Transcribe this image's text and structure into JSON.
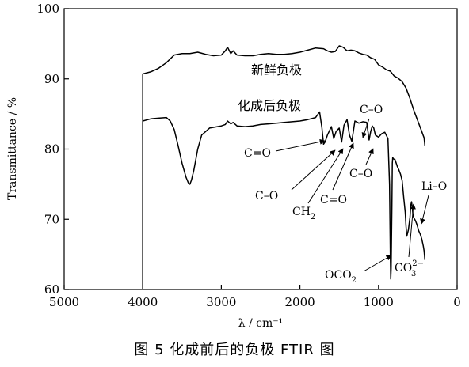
{
  "caption": "图 5 化成前后的负极 FTIR 图",
  "chart_data": {
    "type": "line",
    "title": "",
    "xlabel": "λ / cm⁻¹",
    "ylabel": "Transmittance / %",
    "xlim": [
      5000,
      0
    ],
    "ylim": [
      60,
      100
    ],
    "x_ticks": [
      5000,
      4000,
      3000,
      2000,
      1000,
      0
    ],
    "y_ticks": [
      60,
      70,
      80,
      90,
      100
    ],
    "grid": false,
    "legend": "none",
    "series": [
      {
        "name": "新鲜负极",
        "x": [
          4000,
          4000,
          3900,
          3800,
          3700,
          3600,
          3500,
          3400,
          3300,
          3200,
          3100,
          3000,
          2950,
          2920,
          2880,
          2850,
          2800,
          2700,
          2600,
          2500,
          2400,
          2300,
          2200,
          2100,
          2000,
          1900,
          1800,
          1700,
          1650,
          1600,
          1550,
          1500,
          1450,
          1400,
          1350,
          1300,
          1250,
          1200,
          1150,
          1100,
          1050,
          1000,
          950,
          900,
          850,
          800,
          750,
          700,
          650,
          600,
          550,
          500,
          450,
          420,
          410
        ],
        "y": [
          60,
          90.7,
          91.0,
          91.5,
          92.3,
          93.4,
          93.6,
          93.6,
          93.8,
          93.5,
          93.3,
          93.4,
          94.0,
          94.5,
          93.6,
          94.0,
          93.4,
          93.3,
          93.3,
          93.5,
          93.6,
          93.5,
          93.5,
          93.6,
          93.8,
          94.1,
          94.4,
          94.3,
          94.0,
          93.8,
          93.9,
          94.7,
          94.5,
          94.0,
          94.1,
          94.0,
          93.7,
          93.5,
          93.4,
          93.0,
          92.8,
          92.0,
          91.7,
          91.3,
          91.1,
          90.4,
          90.1,
          89.6,
          88.7,
          87.2,
          85.5,
          84.0,
          82.5,
          81.6,
          80.5
        ]
      },
      {
        "name": "化成后负极",
        "x": [
          4000,
          4000,
          3900,
          3800,
          3700,
          3650,
          3600,
          3550,
          3500,
          3450,
          3420,
          3400,
          3380,
          3350,
          3300,
          3250,
          3200,
          3150,
          3100,
          3000,
          2950,
          2920,
          2880,
          2850,
          2800,
          2700,
          2600,
          2500,
          2400,
          2300,
          2200,
          2100,
          2000,
          1900,
          1800,
          1750,
          1720,
          1700,
          1680,
          1650,
          1600,
          1570,
          1540,
          1500,
          1470,
          1440,
          1400,
          1370,
          1340,
          1300,
          1250,
          1200,
          1150,
          1120,
          1100,
          1080,
          1060,
          1040,
          1000,
          960,
          920,
          880,
          860,
          850,
          845,
          840,
          830,
          825,
          820,
          810,
          790,
          760,
          740,
          720,
          700,
          680,
          660,
          650,
          640,
          620,
          600,
          590,
          580,
          570,
          560,
          550,
          530,
          510,
          490,
          470,
          450,
          430,
          420,
          410
        ],
        "y": [
          60,
          84.0,
          84.3,
          84.4,
          84.5,
          84.0,
          82.8,
          80.5,
          78.0,
          76.0,
          75.2,
          75.0,
          75.6,
          77.0,
          80.0,
          82.0,
          82.5,
          83.0,
          83.1,
          83.3,
          83.5,
          84.0,
          83.6,
          83.8,
          83.3,
          83.2,
          83.3,
          83.5,
          83.6,
          83.7,
          83.8,
          83.9,
          84.0,
          84.2,
          84.5,
          85.3,
          83.0,
          80.7,
          81.0,
          82.0,
          83.2,
          81.5,
          82.5,
          83.0,
          81.0,
          83.4,
          84.2,
          82.0,
          81.1,
          84.0,
          83.7,
          83.9,
          83.8,
          81.3,
          82.5,
          83.3,
          83.0,
          82.0,
          81.7,
          82.2,
          82.4,
          81.5,
          75.0,
          65.0,
          61.5,
          63.0,
          72.0,
          78.0,
          78.8,
          78.6,
          78.5,
          77.5,
          77.0,
          76.4,
          75.5,
          73.2,
          71.0,
          69.0,
          67.6,
          68.5,
          70.3,
          72.0,
          72.5,
          71.5,
          70.5,
          70.2,
          69.8,
          69.2,
          68.4,
          67.9,
          67.2,
          66.2,
          65.5,
          64.2
        ]
      }
    ],
    "annotations": [
      {
        "text": "C=O"
      },
      {
        "text": "C–O"
      },
      {
        "text": "CH",
        "sub": "2"
      },
      {
        "text": "C=O"
      },
      {
        "text": "C–O"
      },
      {
        "text": "C–O"
      },
      {
        "text": "OCO",
        "sub": "2"
      },
      {
        "text": "CO",
        "sub": "3",
        "sup": "2−"
      },
      {
        "text": "Li–O"
      }
    ]
  }
}
